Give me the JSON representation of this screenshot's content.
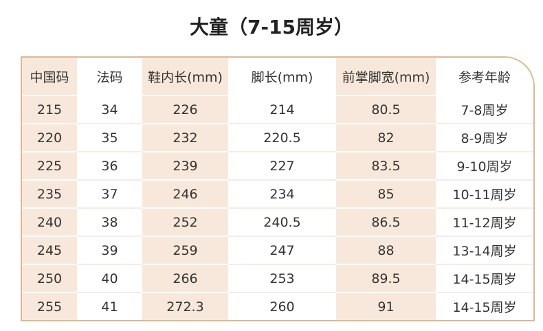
{
  "title": "大童（7-15周岁）",
  "table": {
    "header": [
      "中国码",
      "法码",
      "鞋内长(mm)",
      "脚长(mm)",
      "前掌脚宽(mm)",
      "参考年龄"
    ],
    "rows": [
      [
        "215",
        "34",
        "226",
        "214",
        "80.5",
        "7-8周岁"
      ],
      [
        "220",
        "35",
        "232",
        "220.5",
        "82",
        "8-9周岁"
      ],
      [
        "225",
        "36",
        "239",
        "227",
        "83.5",
        "9-10周岁"
      ],
      [
        "235",
        "37",
        "246",
        "234",
        "85",
        "10-11周岁"
      ],
      [
        "240",
        "38",
        "252",
        "240.5",
        "86.5",
        "11-12周岁"
      ],
      [
        "245",
        "39",
        "259",
        "247",
        "88",
        "13-14周岁"
      ],
      [
        "250",
        "40",
        "266",
        "253",
        "89.5",
        "14-15周岁"
      ],
      [
        "255",
        "41",
        "272.3",
        "260",
        "91",
        "14-15周岁"
      ]
    ]
  }
}
